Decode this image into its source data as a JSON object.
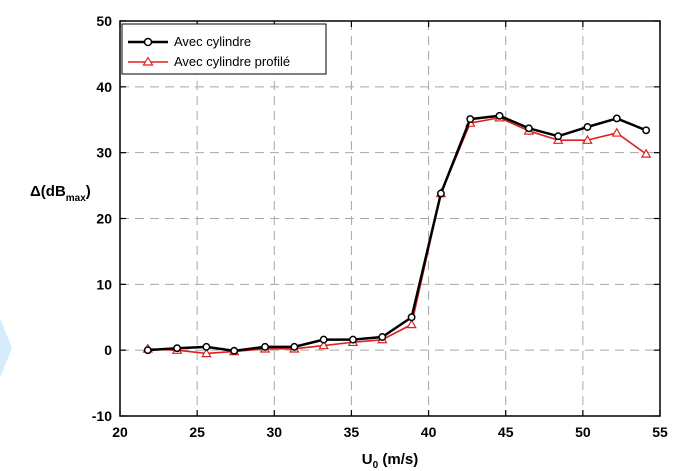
{
  "chart_data": {
    "type": "line",
    "xlabel": {
      "main": "U",
      "sub": "0",
      "rest": " (m/s)"
    },
    "ylabel": {
      "prefix": "Δ(dB",
      "sub": "max",
      "suffix": ")"
    },
    "xlim": [
      20,
      55
    ],
    "ylim": [
      -10,
      50
    ],
    "xticks": [
      20,
      25,
      30,
      35,
      40,
      45,
      50,
      55
    ],
    "yticks": [
      -10,
      0,
      10,
      20,
      30,
      40,
      50
    ],
    "grid": true,
    "legend_position": "top-left",
    "series": [
      {
        "name": "Avec cylindre",
        "color": "#000000",
        "marker": "circle",
        "x": [
          21.8,
          23.7,
          25.6,
          27.4,
          29.4,
          31.3,
          33.2,
          35.1,
          37.0,
          38.9,
          40.8,
          42.7,
          44.6,
          46.5,
          48.4,
          50.3,
          52.2,
          54.1
        ],
        "y": [
          0.0,
          0.3,
          0.5,
          -0.1,
          0.5,
          0.5,
          1.6,
          1.6,
          2.0,
          5.0,
          23.8,
          35.1,
          35.6,
          33.7,
          32.5,
          33.9,
          35.2,
          33.4
        ]
      },
      {
        "name": "Avec cylindre profilé",
        "color": "#e02020",
        "marker": "triangle",
        "x": [
          21.8,
          23.7,
          25.6,
          27.4,
          29.4,
          31.3,
          33.2,
          35.1,
          37.0,
          38.9,
          40.8,
          42.7,
          44.6,
          46.5,
          48.4,
          50.3,
          52.2,
          54.1
        ],
        "y": [
          0.2,
          0.0,
          -0.5,
          -0.2,
          0.2,
          0.2,
          0.7,
          1.2,
          1.6,
          3.9,
          23.8,
          34.5,
          35.3,
          33.3,
          31.9,
          31.9,
          33.0,
          29.8
        ]
      }
    ]
  }
}
